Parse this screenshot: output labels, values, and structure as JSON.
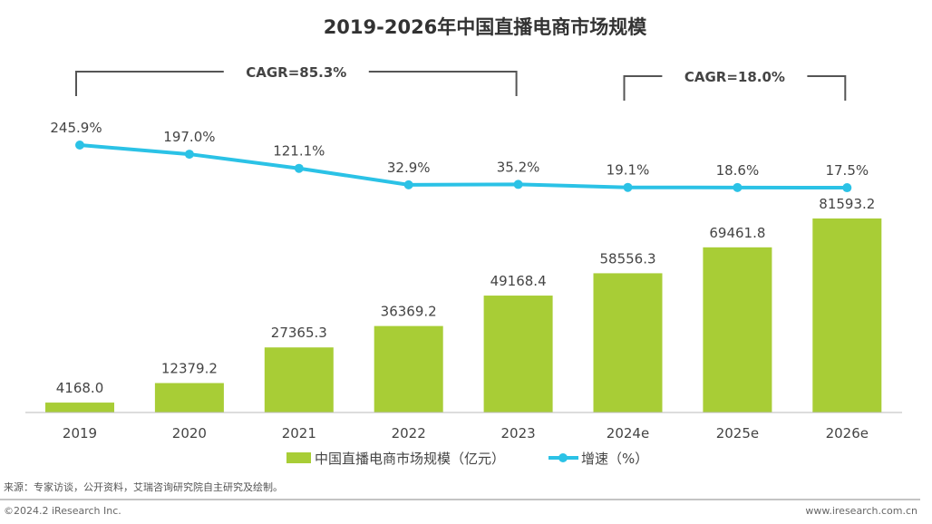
{
  "chart_data": {
    "type": "bar",
    "title": "2019-2026年中国直播电商市场规模",
    "categories": [
      "2019",
      "2020",
      "2021",
      "2022",
      "2023",
      "2024e",
      "2025e",
      "2026e"
    ],
    "series": [
      {
        "name": "中国直播电商市场规模（亿元）",
        "type": "bar",
        "color": "#a8cd36",
        "values": [
          4168.0,
          12379.2,
          27365.3,
          36369.2,
          49168.4,
          58556.3,
          69461.8,
          81593.2
        ],
        "labels": [
          "4168.0",
          "12379.2",
          "27365.3",
          "36369.2",
          "49168.4",
          "58556.3",
          "69461.8",
          "81593.2"
        ]
      },
      {
        "name": "增速（%）",
        "type": "line",
        "color": "#2bc2e6",
        "values": [
          245.9,
          197.0,
          121.1,
          32.9,
          35.2,
          19.1,
          18.6,
          17.5
        ],
        "labels": [
          "245.9%",
          "197.0%",
          "121.1%",
          "32.9%",
          "35.2%",
          "19.1%",
          "18.6%",
          "17.5%"
        ]
      }
    ],
    "annotations": [
      {
        "text": "CAGR=85.3%",
        "from": "2019",
        "to": "2023"
      },
      {
        "text": "CAGR=18.0%",
        "from": "2024e",
        "to": "2026e"
      }
    ],
    "legend_position": "bottom",
    "grid": false
  },
  "footer": {
    "source": "来源：专家访谈，公开资料，艾瑞咨询研究院自主研究及绘制。",
    "copyright": "©2024.2 iResearch Inc.",
    "website": "www.iresearch.com.cn"
  }
}
